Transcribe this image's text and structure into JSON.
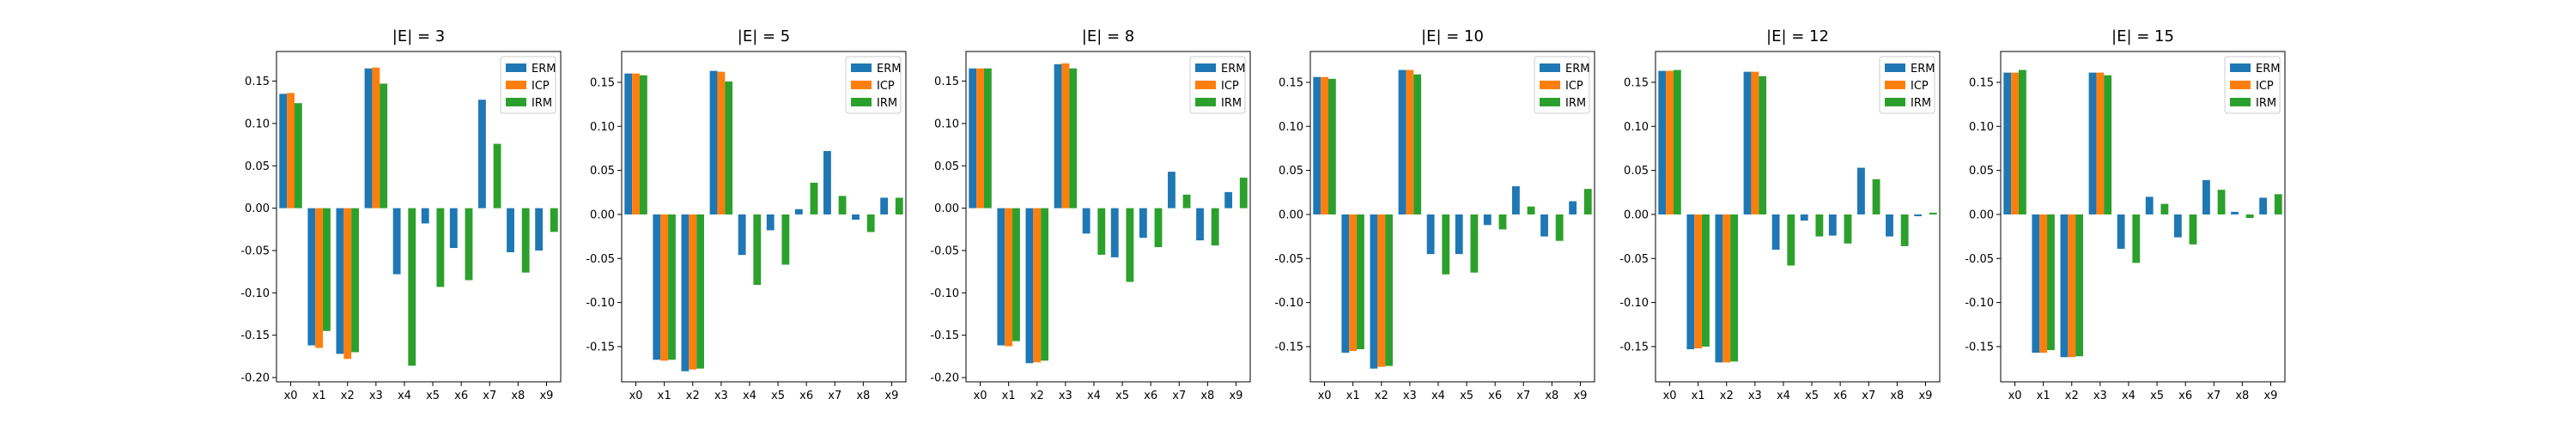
{
  "chart_data": [
    {
      "type": "bar",
      "title": "|E| = 3",
      "categories": [
        "x0",
        "x1",
        "x2",
        "x3",
        "x4",
        "x5",
        "x6",
        "x7",
        "x8",
        "x9"
      ],
      "ylim": [
        -0.205,
        0.185
      ],
      "yticks": [
        -0.2,
        -0.15,
        -0.1,
        -0.05,
        0.0,
        0.05,
        0.1,
        0.15
      ],
      "grid": false,
      "legend": "top-right",
      "series": [
        {
          "name": "ERM",
          "values": [
            0.135,
            -0.162,
            -0.172,
            0.165,
            -0.078,
            -0.018,
            -0.047,
            0.128,
            -0.052,
            -0.05
          ]
        },
        {
          "name": "ICP",
          "values": [
            0.136,
            -0.165,
            -0.178,
            0.166,
            0,
            0,
            0,
            0,
            0,
            0
          ]
        },
        {
          "name": "IRM",
          "values": [
            0.124,
            -0.145,
            -0.17,
            0.147,
            -0.186,
            -0.093,
            -0.085,
            0.076,
            -0.076,
            -0.028
          ]
        }
      ]
    },
    {
      "type": "bar",
      "title": "|E| = 5",
      "categories": [
        "x0",
        "x1",
        "x2",
        "x3",
        "x4",
        "x5",
        "x6",
        "x7",
        "x8",
        "x9"
      ],
      "ylim": [
        -0.19,
        0.185
      ],
      "yticks": [
        -0.15,
        -0.1,
        -0.05,
        0.0,
        0.05,
        0.1,
        0.15
      ],
      "grid": false,
      "legend": "top-right",
      "series": [
        {
          "name": "ERM",
          "values": [
            0.16,
            -0.165,
            -0.178,
            0.163,
            -0.046,
            -0.018,
            0.006,
            0.072,
            -0.006,
            0.019
          ]
        },
        {
          "name": "ICP",
          "values": [
            0.16,
            -0.166,
            -0.176,
            0.162,
            0,
            0,
            0,
            0,
            0,
            0
          ]
        },
        {
          "name": "IRM",
          "values": [
            0.158,
            -0.165,
            -0.175,
            0.151,
            -0.08,
            -0.057,
            0.036,
            0.021,
            -0.02,
            0.019
          ]
        }
      ]
    },
    {
      "type": "bar",
      "title": "|E| = 8",
      "categories": [
        "x0",
        "x1",
        "x2",
        "x3",
        "x4",
        "x5",
        "x6",
        "x7",
        "x8",
        "x9"
      ],
      "ylim": [
        -0.205,
        0.185
      ],
      "yticks": [
        -0.2,
        -0.15,
        -0.1,
        -0.05,
        0.0,
        0.05,
        0.1,
        0.15
      ],
      "grid": false,
      "legend": "top-right",
      "series": [
        {
          "name": "ERM",
          "values": [
            0.165,
            -0.162,
            -0.183,
            0.17,
            -0.03,
            -0.058,
            -0.035,
            0.043,
            -0.038,
            0.019
          ]
        },
        {
          "name": "ICP",
          "values": [
            0.165,
            -0.163,
            -0.182,
            0.171,
            0,
            0,
            0,
            0,
            0,
            0
          ]
        },
        {
          "name": "IRM",
          "values": [
            0.165,
            -0.157,
            -0.18,
            0.165,
            -0.055,
            -0.087,
            -0.046,
            0.016,
            -0.044,
            0.036
          ]
        }
      ]
    },
    {
      "type": "bar",
      "title": "|E| = 10",
      "categories": [
        "x0",
        "x1",
        "x2",
        "x3",
        "x4",
        "x5",
        "x6",
        "x7",
        "x8",
        "x9"
      ],
      "ylim": [
        -0.19,
        0.185
      ],
      "yticks": [
        -0.15,
        -0.1,
        -0.05,
        0.0,
        0.05,
        0.1,
        0.15
      ],
      "grid": false,
      "legend": "top-right",
      "series": [
        {
          "name": "ERM",
          "values": [
            0.156,
            -0.157,
            -0.175,
            0.164,
            -0.045,
            -0.045,
            -0.012,
            0.032,
            -0.025,
            0.015
          ]
        },
        {
          "name": "ICP",
          "values": [
            0.156,
            -0.155,
            -0.173,
            0.164,
            0,
            0,
            0,
            0,
            0,
            0
          ]
        },
        {
          "name": "IRM",
          "values": [
            0.154,
            -0.153,
            -0.172,
            0.159,
            -0.068,
            -0.066,
            -0.017,
            0.009,
            -0.03,
            0.029
          ]
        }
      ]
    },
    {
      "type": "bar",
      "title": "|E| = 12",
      "categories": [
        "x0",
        "x1",
        "x2",
        "x3",
        "x4",
        "x5",
        "x6",
        "x7",
        "x8",
        "x9"
      ],
      "ylim": [
        -0.19,
        0.185
      ],
      "yticks": [
        -0.15,
        -0.1,
        -0.05,
        0.0,
        0.05,
        0.1,
        0.15
      ],
      "grid": false,
      "legend": "top-right",
      "series": [
        {
          "name": "ERM",
          "values": [
            0.163,
            -0.153,
            -0.168,
            0.162,
            -0.04,
            -0.007,
            -0.024,
            0.053,
            -0.025,
            -0.002
          ]
        },
        {
          "name": "ICP",
          "values": [
            0.163,
            -0.152,
            -0.168,
            0.162,
            0,
            0,
            0,
            0,
            0,
            0
          ]
        },
        {
          "name": "IRM",
          "values": [
            0.164,
            -0.15,
            -0.167,
            0.157,
            -0.058,
            -0.025,
            -0.033,
            0.04,
            -0.036,
            0.002
          ]
        }
      ]
    },
    {
      "type": "bar",
      "title": "|E| = 15",
      "categories": [
        "x0",
        "x1",
        "x2",
        "x3",
        "x4",
        "x5",
        "x6",
        "x7",
        "x8",
        "x9"
      ],
      "ylim": [
        -0.19,
        0.185
      ],
      "yticks": [
        -0.15,
        -0.1,
        -0.05,
        0.0,
        0.05,
        0.1,
        0.15
      ],
      "grid": false,
      "legend": "top-right",
      "series": [
        {
          "name": "ERM",
          "values": [
            0.161,
            -0.157,
            -0.162,
            0.161,
            -0.039,
            0.02,
            -0.026,
            0.039,
            0.003,
            0.019
          ]
        },
        {
          "name": "ICP",
          "values": [
            0.161,
            -0.157,
            -0.162,
            0.161,
            0,
            0,
            0,
            0,
            0,
            0
          ]
        },
        {
          "name": "IRM",
          "values": [
            0.164,
            -0.154,
            -0.161,
            0.158,
            -0.055,
            0.012,
            -0.034,
            0.028,
            -0.004,
            0.023
          ]
        }
      ]
    }
  ],
  "colors": {
    "ERM": "#1f77b4",
    "ICP": "#ff7f0e",
    "IRM": "#2ca02c"
  }
}
